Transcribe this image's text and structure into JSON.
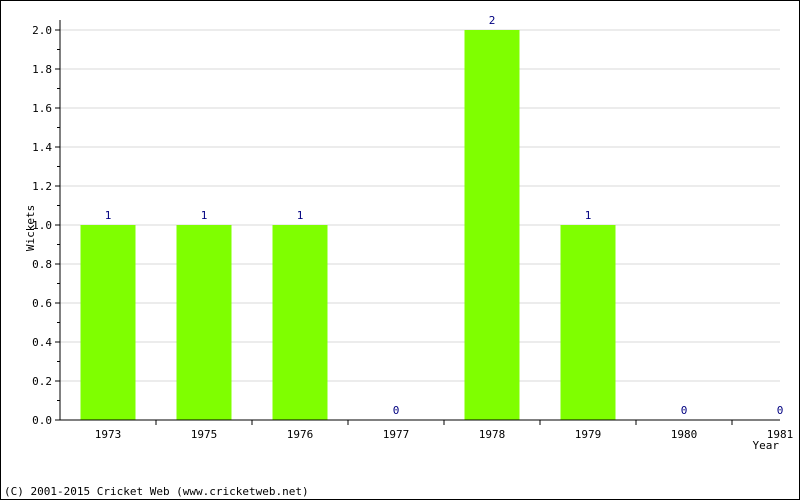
{
  "chart_data": {
    "type": "bar",
    "categories": [
      "1973",
      "1975",
      "1976",
      "1977",
      "1978",
      "1979",
      "1980",
      "1981"
    ],
    "values": [
      1,
      1,
      1,
      0,
      2,
      1,
      0,
      0
    ],
    "value_labels": [
      "1",
      "1",
      "1",
      "0",
      "2",
      "1",
      "0",
      "0"
    ],
    "yticks": [
      "0.0",
      "0.2",
      "0.4",
      "0.6",
      "0.8",
      "1.0",
      "1.2",
      "1.4",
      "1.6",
      "1.8",
      "2.0"
    ],
    "ylim": [
      0,
      2
    ],
    "xlabel": "Year",
    "ylabel": "Wickets",
    "grid": true,
    "bar_color": "#7fff00",
    "label_color": "#000080",
    "grid_color": "#d8d8d8"
  },
  "footer": {
    "copyright": "(C) 2001-2015 Cricket Web (www.cricketweb.net)"
  }
}
